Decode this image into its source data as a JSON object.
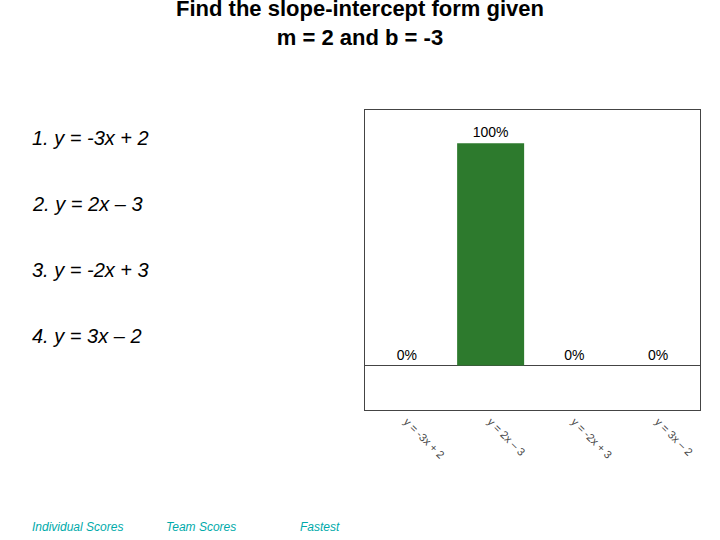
{
  "chart_data": {
    "type": "bar",
    "title": "Find the slope-intercept form given",
    "subtitle": "m = 2 and b = -3",
    "categories": [
      "y = -3x + 2",
      "y = 2x – 3",
      "y = -2x + 3",
      "y = 3x – 2"
    ],
    "values": [
      0,
      100,
      0,
      0
    ],
    "value_labels": [
      "0%",
      "100%",
      "0%",
      "0%"
    ],
    "data_labels": true,
    "color": "#2d7a2d",
    "ylim": [
      -20,
      115
    ],
    "tick_labels": "x",
    "grid": false,
    "annotations": [
      "1. y = -3x + 2",
      "2. y = 2x – 3",
      "3. y = -2x + 3",
      "4. y = 3x – 2",
      "Individual Scores",
      "Team Scores",
      "Fastest"
    ]
  }
}
